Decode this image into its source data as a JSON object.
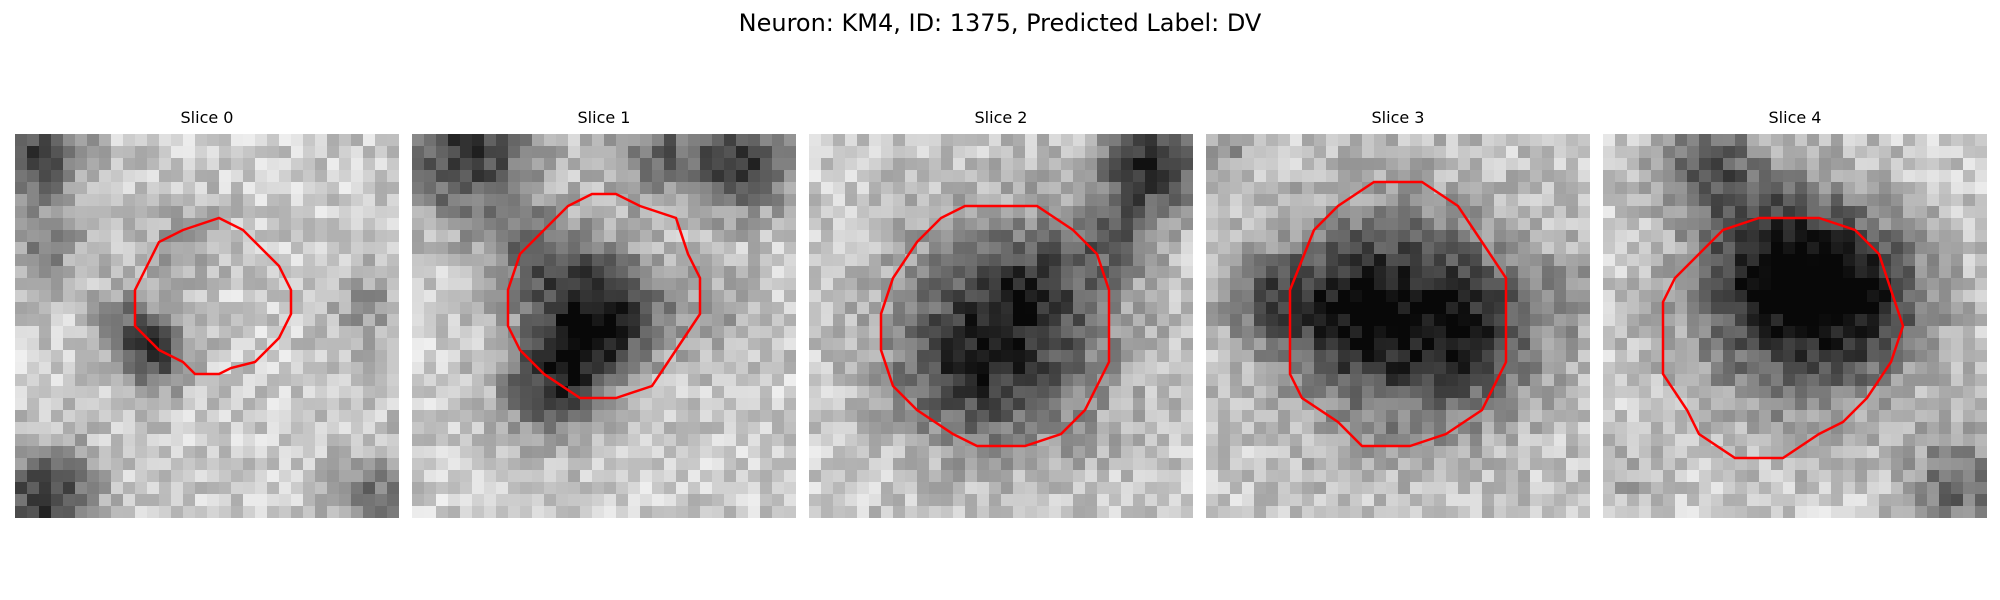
{
  "figure": {
    "title": "Neuron: KM4, ID: 1375, Predicted Label: DV"
  },
  "slices": [
    {
      "title": "Slice 0"
    },
    {
      "title": "Slice 1"
    },
    {
      "title": "Slice 2"
    },
    {
      "title": "Slice 3"
    },
    {
      "title": "Slice 4"
    }
  ],
  "colors": {
    "contour": "#ff0000",
    "background": "#ffffff"
  }
}
